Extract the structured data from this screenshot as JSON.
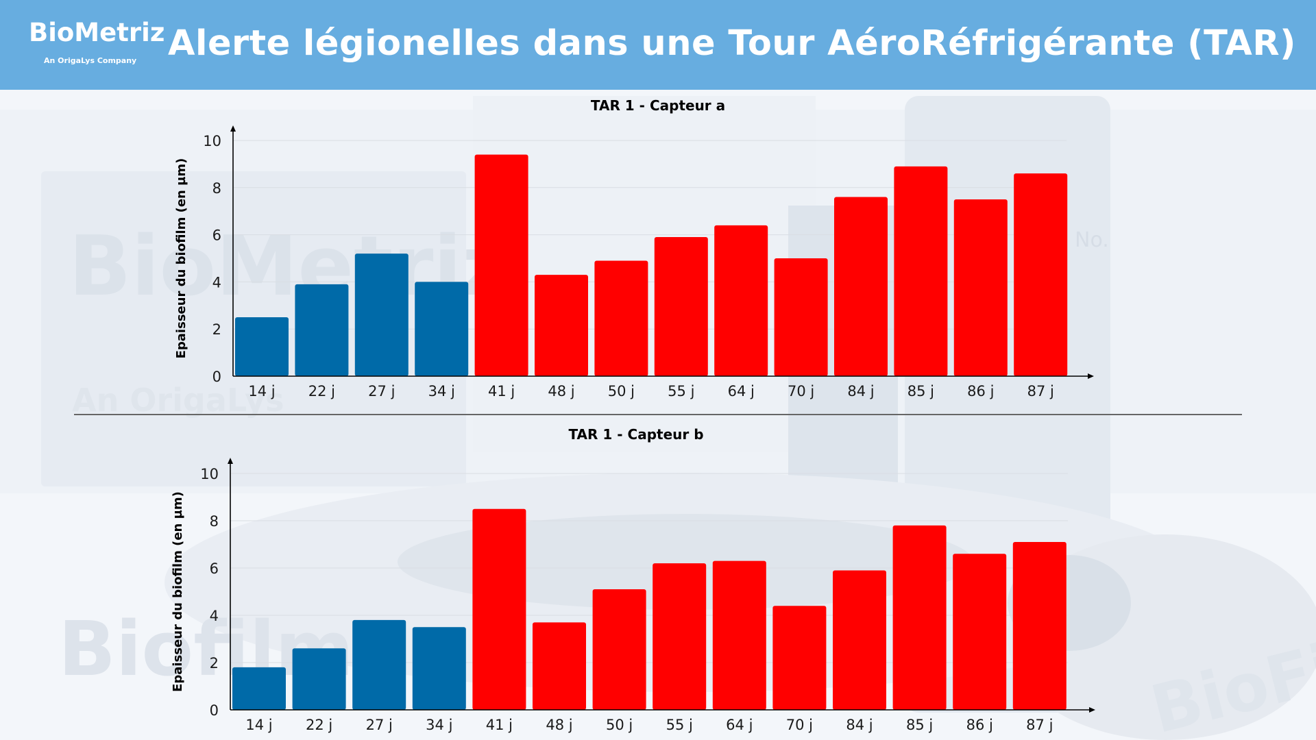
{
  "header": {
    "logo_name": "BioMetriz",
    "logo_tagline": "An OrigaLys Company",
    "title": "Alerte légionelles dans une Tour AéroRéfrigérante (TAR)",
    "background_color": "#67ade0"
  },
  "background": {
    "watermark_texts": [
      "BioMetriz",
      "An OrigaLys",
      "Biofilm",
      "BioFilm",
      "No."
    ]
  },
  "colors": {
    "normal": "#006aa8",
    "alert": "#ff0000"
  },
  "chart_data": [
    {
      "type": "bar",
      "title": "TAR 1 - Capteur a",
      "xlabel": "",
      "ylabel": "Epaisseur du biofilm (en µm)",
      "ylim": [
        0,
        10
      ],
      "yticks": [
        0,
        2,
        4,
        6,
        8,
        10
      ],
      "grid": true,
      "categories": [
        "14 j",
        "22 j",
        "27 j",
        "34 j",
        "41 j",
        "48 j",
        "50 j",
        "55 j",
        "64 j",
        "70 j",
        "84 j",
        "85 j",
        "86 j",
        "87 j"
      ],
      "values": [
        2.5,
        3.9,
        5.2,
        4.0,
        9.4,
        4.3,
        4.9,
        5.9,
        6.4,
        5.0,
        7.6,
        8.9,
        7.5,
        8.6
      ],
      "alert": [
        false,
        false,
        false,
        false,
        true,
        true,
        true,
        true,
        true,
        true,
        true,
        true,
        true,
        true
      ]
    },
    {
      "type": "bar",
      "title": "TAR 1 - Capteur b",
      "xlabel": "",
      "ylabel": "Epaisseur du biofilm (en µm)",
      "ylim": [
        0,
        10
      ],
      "yticks": [
        0,
        2,
        4,
        6,
        8,
        10
      ],
      "grid": true,
      "categories": [
        "14 j",
        "22 j",
        "27 j",
        "34 j",
        "41 j",
        "48 j",
        "50 j",
        "55 j",
        "64 j",
        "70 j",
        "84 j",
        "85 j",
        "86 j",
        "87 j"
      ],
      "values": [
        1.8,
        2.6,
        3.8,
        3.5,
        8.5,
        3.7,
        5.1,
        6.2,
        6.3,
        4.4,
        5.9,
        7.8,
        6.6,
        7.1
      ],
      "alert": [
        false,
        false,
        false,
        false,
        true,
        true,
        true,
        true,
        true,
        true,
        true,
        true,
        true,
        true
      ]
    }
  ]
}
